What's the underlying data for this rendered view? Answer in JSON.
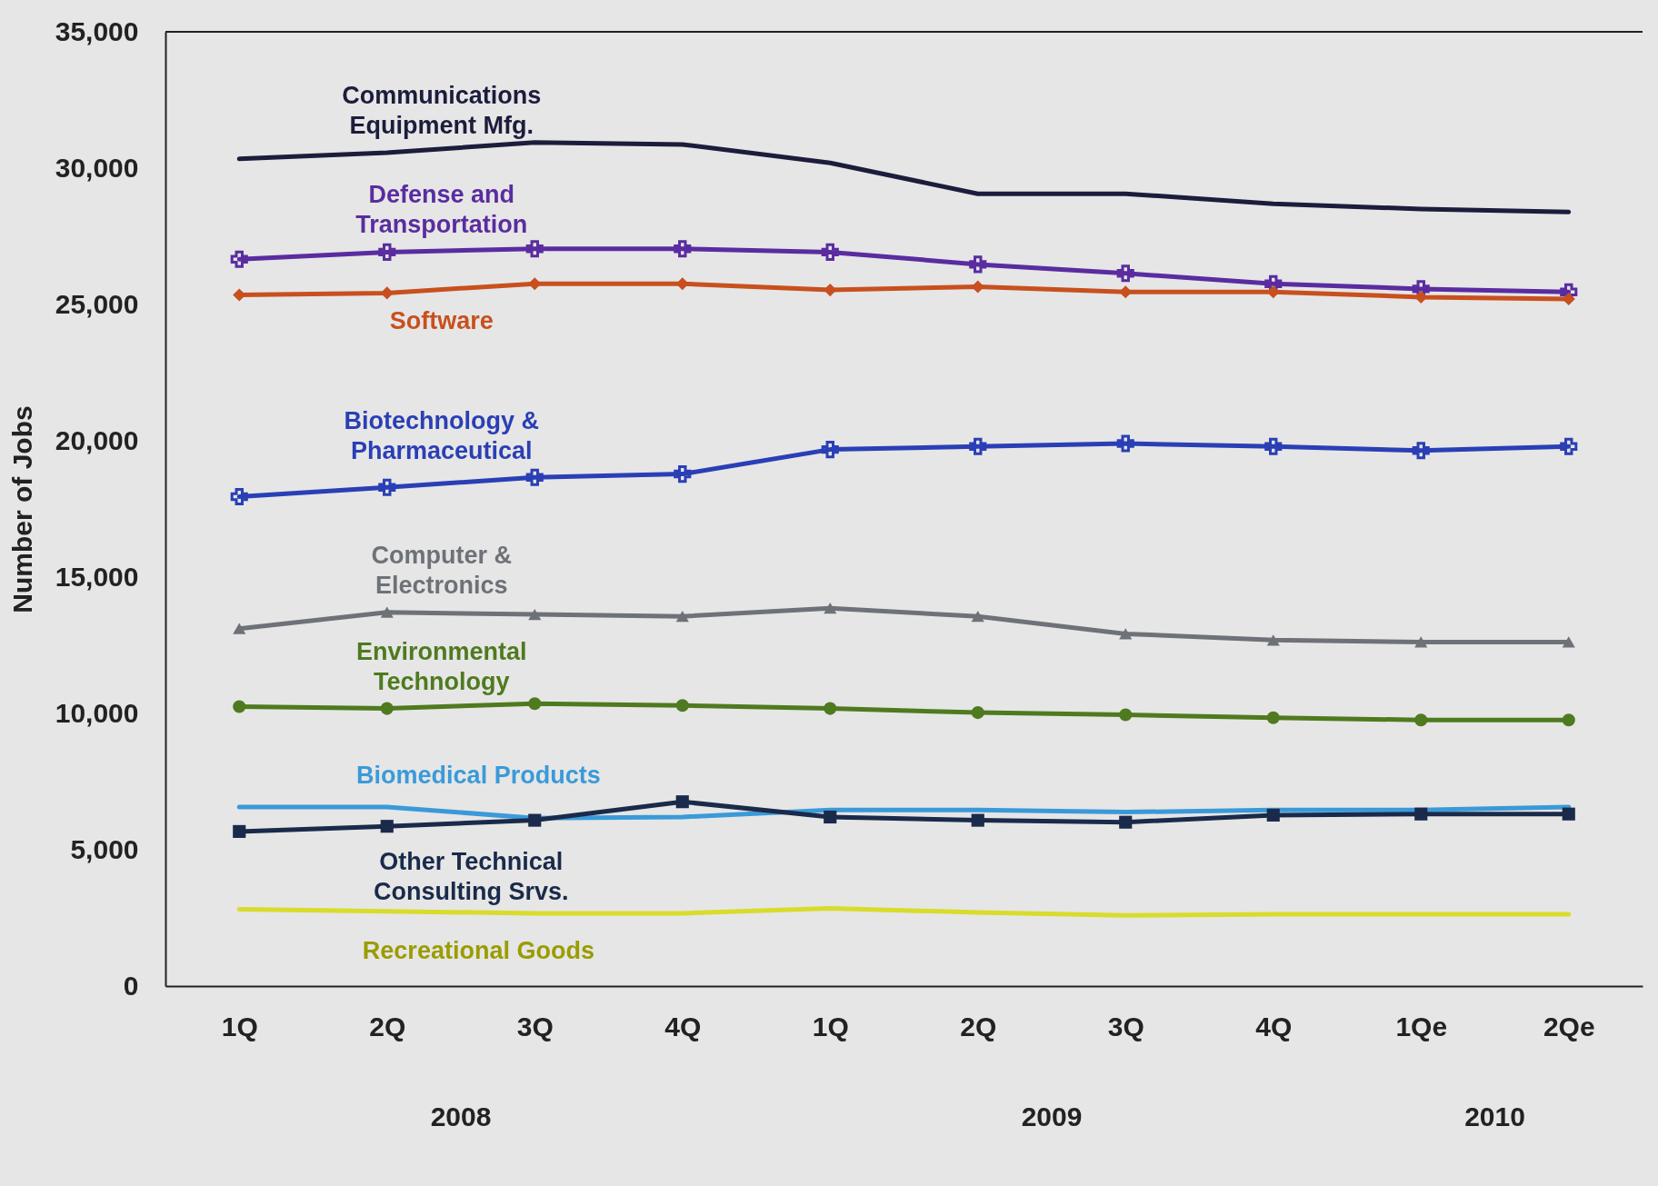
{
  "chart_data": {
    "type": "line",
    "ylabel": "Number of Jobs",
    "categories": [
      "1Q",
      "2Q",
      "3Q",
      "4Q",
      "1Q",
      "2Q",
      "3Q",
      "4Q",
      "1Qe",
      "2Qe"
    ],
    "ylim": [
      0,
      35000
    ],
    "yticks": [
      0,
      {
        "value": 5000,
        "label": "5,000"
      },
      {
        "value": 10000,
        "label": "10,000"
      },
      {
        "value": 15000,
        "label": "15,000"
      },
      {
        "value": 20000,
        "label": "20,000"
      },
      {
        "value": 25000,
        "label": "25,000"
      },
      {
        "value": 30000,
        "label": "30,000"
      },
      {
        "value": 35000,
        "label": "35,000"
      }
    ],
    "grid": false,
    "annotations": [
      "2008",
      "2009",
      "2010"
    ],
    "series": [
      {
        "name": "Communications Equipment Mfg.",
        "color": "#1c1c3c",
        "marker": "none",
        "values": [
          30340,
          30570,
          30940,
          30870,
          30190,
          29060,
          29060,
          28690,
          28500,
          28390
        ]
      },
      {
        "name": "Defense and Transportation",
        "color": "#5a2ca0",
        "marker": "cross",
        "values": [
          26660,
          26920,
          27040,
          27040,
          26920,
          26470,
          26140,
          25760,
          25570,
          25460
        ]
      },
      {
        "name": "Software",
        "color": "#c8501e",
        "marker": "diamond",
        "values": [
          25350,
          25420,
          25760,
          25760,
          25530,
          25650,
          25460,
          25460,
          25270,
          25200
        ]
      },
      {
        "name": "Biotechnology & Pharmaceutical",
        "color": "#2a3fb5",
        "marker": "cross",
        "values": [
          17950,
          18290,
          18660,
          18780,
          19680,
          19790,
          19900,
          19790,
          19640,
          19790
        ]
      },
      {
        "name": "Computer & Electronics",
        "color": "#6e7278",
        "marker": "triangle",
        "values": [
          13110,
          13710,
          13630,
          13560,
          13860,
          13560,
          12920,
          12690,
          12620,
          12620
        ]
      },
      {
        "name": "Environmental Technology",
        "color": "#4f7a1f",
        "marker": "circle",
        "values": [
          10250,
          10180,
          10360,
          10290,
          10180,
          10030,
          9950,
          9840,
          9760,
          9760
        ]
      },
      {
        "name": "Biomedical Products",
        "color": "#3a9ad9",
        "marker": "none",
        "values": [
          6570,
          6570,
          6160,
          6200,
          6460,
          6460,
          6380,
          6460,
          6460,
          6570
        ]
      },
      {
        "name": "Other Technical Consulting Srvs.",
        "color": "#1a2a4a",
        "marker": "square",
        "values": [
          5670,
          5860,
          6080,
          6760,
          6200,
          6080,
          6010,
          6270,
          6310,
          6310
        ]
      },
      {
        "name": "Recreational Goods",
        "color": "#d8dc2a",
        "marker": "none",
        "values": [
          2820,
          2740,
          2670,
          2670,
          2850,
          2700,
          2590,
          2630,
          2630,
          2630
        ]
      }
    ]
  }
}
